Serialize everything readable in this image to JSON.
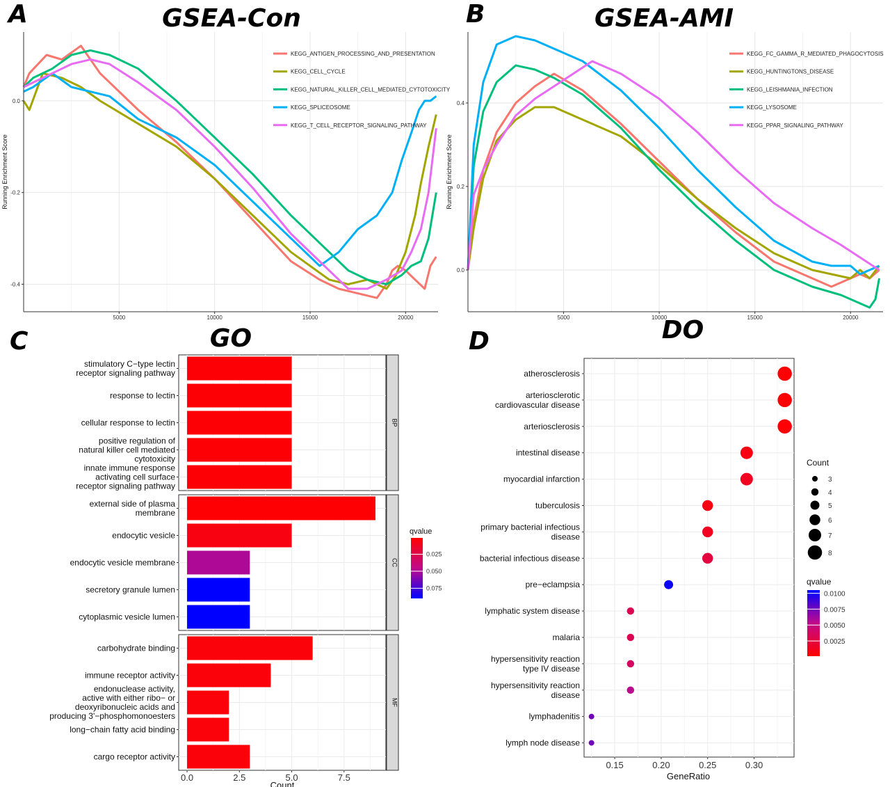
{
  "panels": {
    "A": {
      "letter": "A",
      "title": "GSEA-Con"
    },
    "B": {
      "letter": "B",
      "title": "GSEA-AMI"
    },
    "C": {
      "letter": "C",
      "title": "GO"
    },
    "D": {
      "letter": "D",
      "title": "DO"
    }
  },
  "chart_data": [
    {
      "id": "A",
      "type": "line",
      "title": "GSEA-Con",
      "xlabel": "",
      "ylabel": "Running Enrichment Score",
      "xlim": [
        0,
        21700
      ],
      "ylim": [
        -0.46,
        0.15
      ],
      "xticks": [
        "5000",
        "10000",
        "15000",
        "20000"
      ],
      "yticks": [
        "0.0",
        "-0.2",
        "-0.4"
      ],
      "legend_position": "top-right",
      "series": [
        {
          "name": "KEGG_ANTIGEN_PROCESSING_AND_PRESENTATION",
          "color": "#F8766D",
          "x": [
            0,
            300,
            1200,
            2000,
            3000,
            4000,
            6000,
            8000,
            10000,
            12000,
            14000,
            15500,
            16500,
            17500,
            18500,
            19000,
            19300,
            19600,
            20000,
            20500,
            21000,
            21300,
            21600
          ],
          "y": [
            0.03,
            0.06,
            0.1,
            0.09,
            0.12,
            0.06,
            -0.02,
            -0.09,
            -0.17,
            -0.26,
            -0.35,
            -0.39,
            -0.41,
            -0.42,
            -0.43,
            -0.4,
            -0.37,
            -0.36,
            -0.37,
            -0.39,
            -0.41,
            -0.36,
            -0.34
          ]
        },
        {
          "name": "KEGG_CELL_CYCLE",
          "color": "#A3A500",
          "x": [
            0,
            300,
            1000,
            2000,
            3000,
            4000,
            6000,
            8000,
            10000,
            12000,
            14000,
            16000,
            17000,
            18000,
            19000,
            19500,
            20000,
            20500,
            20800,
            21200,
            21600
          ],
          "y": [
            0.0,
            -0.02,
            0.06,
            0.05,
            0.03,
            0.0,
            -0.05,
            -0.1,
            -0.17,
            -0.25,
            -0.33,
            -0.39,
            -0.4,
            -0.39,
            -0.41,
            -0.38,
            -0.33,
            -0.25,
            -0.18,
            -0.1,
            -0.03
          ]
        },
        {
          "name": "KEGG_NATURAL_KILLER_CELL_MEDIATED_CYTOTOXICITY",
          "color": "#00BF7D",
          "x": [
            0,
            500,
            1500,
            2500,
            3500,
            4500,
            6000,
            8000,
            10000,
            12000,
            14000,
            16000,
            17000,
            18000,
            19000,
            19800,
            20300,
            20800,
            21200,
            21600
          ],
          "y": [
            0.03,
            0.05,
            0.07,
            0.1,
            0.11,
            0.1,
            0.07,
            0.0,
            -0.08,
            -0.16,
            -0.25,
            -0.33,
            -0.37,
            -0.39,
            -0.4,
            -0.38,
            -0.36,
            -0.35,
            -0.3,
            -0.2
          ]
        },
        {
          "name": "KEGG_SPLICEOSOME",
          "color": "#00B0F6",
          "x": [
            0,
            500,
            1500,
            2500,
            3500,
            4500,
            6000,
            8000,
            10000,
            12000,
            14000,
            15500,
            16500,
            17500,
            18500,
            19300,
            19800,
            20300,
            20700,
            21000,
            21300,
            21600
          ],
          "y": [
            0.02,
            0.03,
            0.06,
            0.03,
            0.02,
            0.01,
            -0.04,
            -0.08,
            -0.14,
            -0.22,
            -0.3,
            -0.36,
            -0.33,
            -0.28,
            -0.25,
            -0.2,
            -0.13,
            -0.07,
            -0.02,
            0.0,
            0.0,
            0.01
          ]
        },
        {
          "name": "KEGG_T_CELL_RECEPTOR_SIGNALING_PATHWAY",
          "color": "#E76BF3",
          "x": [
            0,
            500,
            1500,
            2500,
            3500,
            4500,
            6000,
            8000,
            10000,
            12000,
            14000,
            16000,
            17000,
            18000,
            19000,
            19800,
            20300,
            20800,
            21200,
            21600
          ],
          "y": [
            0.03,
            0.04,
            0.06,
            0.08,
            0.09,
            0.08,
            0.04,
            -0.02,
            -0.1,
            -0.19,
            -0.29,
            -0.37,
            -0.41,
            -0.41,
            -0.39,
            -0.37,
            -0.33,
            -0.28,
            -0.2,
            -0.06
          ]
        }
      ]
    },
    {
      "id": "B",
      "type": "line",
      "title": "GSEA-AMI",
      "xlabel": "",
      "ylabel": "Running Enrichment Score",
      "xlim": [
        0,
        21700
      ],
      "ylim": [
        -0.1,
        0.57
      ],
      "xticks": [
        "5000",
        "10000",
        "15000",
        "20000"
      ],
      "yticks": [
        "0.4",
        "0.2",
        "0.0"
      ],
      "legend_position": "top-right",
      "series": [
        {
          "name": "KEGG_FC_GAMMA_R_MEDIATED_PHAGOCYTOSIS",
          "color": "#F8766D",
          "x": [
            0,
            300,
            800,
            1500,
            2500,
            3500,
            4500,
            6000,
            8000,
            10000,
            12000,
            14000,
            16000,
            18000,
            19000,
            19500,
            20000,
            20500,
            21000,
            21500
          ],
          "y": [
            0.0,
            0.12,
            0.24,
            0.33,
            0.4,
            0.44,
            0.47,
            0.43,
            0.35,
            0.26,
            0.17,
            0.09,
            0.02,
            -0.02,
            -0.04,
            -0.03,
            -0.02,
            -0.01,
            -0.02,
            0.0
          ]
        },
        {
          "name": "KEGG_HUNTINGTONS_DISEASE",
          "color": "#A3A500",
          "x": [
            0,
            300,
            800,
            1500,
            2500,
            3500,
            4500,
            6000,
            8000,
            10000,
            12000,
            14000,
            16000,
            18000,
            19000,
            20000,
            20500,
            21000,
            21500
          ],
          "y": [
            0.0,
            0.1,
            0.22,
            0.31,
            0.36,
            0.39,
            0.39,
            0.36,
            0.32,
            0.25,
            0.17,
            0.1,
            0.04,
            0.0,
            -0.01,
            -0.02,
            0.0,
            -0.02,
            0.01
          ]
        },
        {
          "name": "KEGG_LEISHMANIA_INFECTION",
          "color": "#00BF7D",
          "x": [
            0,
            300,
            800,
            1500,
            2500,
            3500,
            4500,
            6000,
            8000,
            10000,
            12000,
            14000,
            16000,
            18000,
            19500,
            20500,
            21000,
            21300,
            21500
          ],
          "y": [
            0.0,
            0.25,
            0.38,
            0.45,
            0.49,
            0.48,
            0.46,
            0.42,
            0.34,
            0.24,
            0.15,
            0.07,
            0.0,
            -0.04,
            -0.06,
            -0.08,
            -0.09,
            -0.07,
            -0.02
          ]
        },
        {
          "name": "KEGG_LYSOSOME",
          "color": "#00B0F6",
          "x": [
            0,
            300,
            800,
            1500,
            2500,
            3500,
            4500,
            6000,
            8000,
            10000,
            12000,
            14000,
            16000,
            18000,
            19000,
            20000,
            20500,
            21000,
            21500
          ],
          "y": [
            0.0,
            0.3,
            0.45,
            0.54,
            0.56,
            0.55,
            0.53,
            0.5,
            0.43,
            0.34,
            0.24,
            0.15,
            0.07,
            0.02,
            0.01,
            0.01,
            -0.01,
            0.0,
            0.01
          ]
        },
        {
          "name": "KEGG_PPAR_SIGNALING_PATHWAY",
          "color": "#E76BF3",
          "x": [
            0,
            300,
            800,
            1500,
            2500,
            3500,
            4500,
            5500,
            6500,
            8000,
            10000,
            12000,
            14000,
            16000,
            18000,
            19500,
            20500,
            21500
          ],
          "y": [
            0.0,
            0.18,
            0.24,
            0.3,
            0.37,
            0.41,
            0.44,
            0.47,
            0.5,
            0.47,
            0.41,
            0.33,
            0.24,
            0.16,
            0.1,
            0.06,
            0.03,
            0.0
          ]
        }
      ]
    },
    {
      "id": "C",
      "type": "bar",
      "orientation": "horizontal",
      "title": "GO",
      "xlabel": "Count",
      "xlim": [
        -0.4,
        9.5
      ],
      "xticks": [
        0,
        2.5,
        5,
        7.5
      ],
      "xtick_labels": [
        "0.0",
        "2.5",
        "5.0",
        "7.5"
      ],
      "colorbar": {
        "title": "qvalue",
        "ticks": [
          "0.025",
          "0.050",
          "0.075"
        ],
        "tick_values": [
          0.025,
          0.05,
          0.075
        ],
        "range": [
          0.001,
          0.09
        ],
        "low_color": "#FF0000",
        "high_color": "#0000FF"
      },
      "facets": [
        {
          "name": "BP",
          "bars": [
            {
              "label": [
                "stimulatory C−type lectin",
                "receptor signaling pathway"
              ],
              "value": 5,
              "qvalue": 0.003
            },
            {
              "label": [
                "response to lectin"
              ],
              "value": 5,
              "qvalue": 0.003
            },
            {
              "label": [
                "cellular response to lectin"
              ],
              "value": 5,
              "qvalue": 0.003
            },
            {
              "label": [
                "positive regulation of",
                "natural killer cell mediated",
                "cytotoxicity"
              ],
              "value": 5,
              "qvalue": 0.003
            },
            {
              "label": [
                "innate immune response",
                "activating cell surface",
                "receptor signaling pathway"
              ],
              "value": 5,
              "qvalue": 0.003
            }
          ]
        },
        {
          "name": "CC",
          "bars": [
            {
              "label": [
                "external side of plasma",
                "membrane"
              ],
              "value": 9,
              "qvalue": 0.002
            },
            {
              "label": [
                "endocytic vesicle"
              ],
              "value": 5,
              "qvalue": 0.006
            },
            {
              "label": [
                "endocytic vesicle membrane"
              ],
              "value": 3,
              "qvalue": 0.05
            },
            {
              "label": [
                "secretory granule lumen"
              ],
              "value": 3,
              "qvalue": 0.09
            },
            {
              "label": [
                "cytoplasmic vesicle lumen"
              ],
              "value": 3,
              "qvalue": 0.09
            }
          ]
        },
        {
          "name": "MF",
          "bars": [
            {
              "label": [
                "carbohydrate binding"
              ],
              "value": 6,
              "qvalue": 0.004
            },
            {
              "label": [
                "immune receptor activity"
              ],
              "value": 4,
              "qvalue": 0.004
            },
            {
              "label": [
                "endonuclease activity,",
                "active with either ribo− or",
                "deoxyribonucleic acids and",
                "producing 3'−phosphomonoesters"
              ],
              "value": 2,
              "qvalue": 0.004
            },
            {
              "label": [
                "long−chain fatty acid binding"
              ],
              "value": 2,
              "qvalue": 0.004
            },
            {
              "label": [
                "cargo receptor activity"
              ],
              "value": 3,
              "qvalue": 0.004
            }
          ]
        }
      ]
    },
    {
      "id": "D",
      "type": "scatter",
      "title": "DO",
      "xlabel": "GeneRatio",
      "xlim": [
        0.117,
        0.343
      ],
      "xticks": [
        0.15,
        0.2,
        0.25,
        0.3
      ],
      "xtick_labels": [
        "0.15",
        "0.20",
        "0.25",
        "0.30"
      ],
      "size_legend": {
        "title": "Count",
        "values": [
          3,
          4,
          5,
          6,
          7,
          8
        ],
        "labels": [
          "3",
          "4",
          "5",
          "6",
          "7",
          "8"
        ]
      },
      "colorbar": {
        "title": "qvalue",
        "ticks": [
          "0.0100",
          "0.0075",
          "0.0050",
          "0.0025"
        ],
        "tick_values": [
          0.01,
          0.0075,
          0.005,
          0.0025
        ],
        "range": [
          0.0001,
          0.0105
        ],
        "low_color": "#FF0000",
        "high_color": "#0000FF"
      },
      "points": [
        {
          "label": [
            "atherosclerosis"
          ],
          "gene_ratio": 0.333,
          "count": 8,
          "qvalue": 0.0003
        },
        {
          "label": [
            "arteriosclerotic",
            "cardiovascular disease"
          ],
          "gene_ratio": 0.333,
          "count": 8,
          "qvalue": 0.0003
        },
        {
          "label": [
            "arteriosclerosis"
          ],
          "gene_ratio": 0.333,
          "count": 8,
          "qvalue": 0.0003
        },
        {
          "label": [
            "intestinal disease"
          ],
          "gene_ratio": 0.292,
          "count": 7,
          "qvalue": 0.0008
        },
        {
          "label": [
            "myocardial infarction"
          ],
          "gene_ratio": 0.292,
          "count": 7,
          "qvalue": 0.0013
        },
        {
          "label": [
            "tuberculosis"
          ],
          "gene_ratio": 0.25,
          "count": 6,
          "qvalue": 0.0008
        },
        {
          "label": [
            "primary bacterial infectious",
            "disease"
          ],
          "gene_ratio": 0.25,
          "count": 6,
          "qvalue": 0.0013
        },
        {
          "label": [
            "bacterial infectious disease"
          ],
          "gene_ratio": 0.25,
          "count": 6,
          "qvalue": 0.0025
        },
        {
          "label": [
            "pre−eclampsia"
          ],
          "gene_ratio": 0.208,
          "count": 5,
          "qvalue": 0.0102
        },
        {
          "label": [
            "lymphatic system disease"
          ],
          "gene_ratio": 0.167,
          "count": 4,
          "qvalue": 0.0032
        },
        {
          "label": [
            "malaria"
          ],
          "gene_ratio": 0.167,
          "count": 4,
          "qvalue": 0.0032
        },
        {
          "label": [
            "hypersensitivity reaction",
            "type IV disease"
          ],
          "gene_ratio": 0.167,
          "count": 4,
          "qvalue": 0.0037
        },
        {
          "label": [
            "hypersensitivity reaction",
            "disease"
          ],
          "gene_ratio": 0.167,
          "count": 4,
          "qvalue": 0.0055
        },
        {
          "label": [
            "lymphadenitis"
          ],
          "gene_ratio": 0.125,
          "count": 3,
          "qvalue": 0.0075
        },
        {
          "label": [
            "lymph node disease"
          ],
          "gene_ratio": 0.125,
          "count": 3,
          "qvalue": 0.0075
        }
      ]
    }
  ]
}
